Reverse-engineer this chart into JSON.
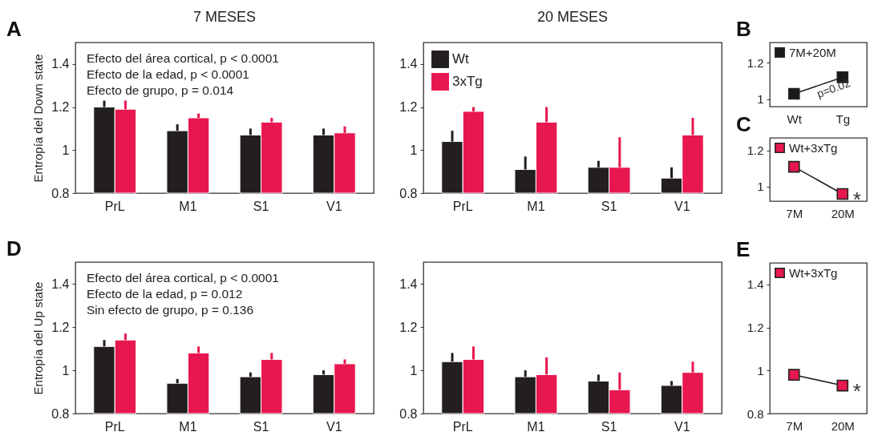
{
  "chart_data": [
    {
      "type": "bar",
      "title": "7 MESES",
      "ylabel": "Entropía del Down state",
      "categories": [
        "PrL",
        "M1",
        "S1",
        "V1"
      ],
      "ylim": [
        0.8,
        1.5
      ],
      "yticks": [
        0.8,
        1,
        1.2,
        1.4
      ],
      "grid": false,
      "legend": false,
      "series": [
        {
          "color": "#231f20",
          "values": [
            1.2,
            1.09,
            1.07,
            1.07
          ],
          "errors": [
            [
              1.2,
              1.23
            ],
            [
              1.09,
              1.12
            ],
            [
              1.07,
              1.1
            ],
            [
              1.07,
              1.1
            ]
          ]
        },
        {
          "color": "#e8174f",
          "values": [
            1.19,
            1.15,
            1.13,
            1.08
          ],
          "errors": [
            [
              1.19,
              1.23
            ],
            [
              1.15,
              1.17
            ],
            [
              1.13,
              1.15
            ],
            [
              1.08,
              1.11
            ]
          ]
        }
      ],
      "annotations": [
        "A",
        "Efecto del área cortical, p < 0.0001",
        "Efecto de la edad, p < 0.0001",
        "Efecto de grupo, p = 0.014"
      ]
    },
    {
      "type": "bar",
      "title": "20 MESES",
      "categories": [
        "PrL",
        "M1",
        "S1",
        "V1"
      ],
      "ylim": [
        0.8,
        1.5
      ],
      "yticks": [
        0.8,
        1,
        1.2,
        1.4
      ],
      "grid": false,
      "legend": "top left",
      "series": [
        {
          "name": "Wt",
          "color": "#231f20",
          "values": [
            1.04,
            0.91,
            0.92,
            0.87
          ],
          "errors": [
            [
              1.04,
              1.09
            ],
            [
              0.91,
              0.97
            ],
            [
              0.92,
              0.95
            ],
            [
              0.87,
              0.92
            ]
          ]
        },
        {
          "name": "3xTg",
          "color": "#e8174f",
          "values": [
            1.18,
            1.13,
            0.92,
            1.07
          ],
          "errors": [
            [
              1.18,
              1.2
            ],
            [
              1.13,
              1.2
            ],
            [
              0.92,
              1.06
            ],
            [
              1.07,
              1.15
            ]
          ]
        }
      ]
    },
    {
      "type": "line",
      "categories": [
        "Wt",
        "Tg"
      ],
      "ylim": [
        0.96,
        1.31
      ],
      "yticks": [
        1,
        1.2
      ],
      "grid": false,
      "legend": "top left",
      "marker": "square",
      "series": [
        {
          "name": "7M+20M",
          "color": "#1a1a1a",
          "values": [
            1.03,
            1.12
          ]
        }
      ],
      "annotations": [
        "B",
        "p=0.02"
      ]
    },
    {
      "type": "line",
      "categories": [
        "7M",
        "20M"
      ],
      "ylim": [
        0.92,
        1.27
      ],
      "yticks": [
        1,
        1.2
      ],
      "grid": false,
      "legend": "top left",
      "marker": "square",
      "series": [
        {
          "name": "Wt+3xTg",
          "color": "#e8174f",
          "values": [
            1.11,
            0.96
          ]
        }
      ],
      "annotations": [
        "C",
        {
          "text": "*",
          "x": "20M",
          "y": 0.96
        }
      ]
    },
    {
      "type": "bar",
      "ylabel": "Entropía del Up state",
      "categories": [
        "PrL",
        "M1",
        "S1",
        "V1"
      ],
      "ylim": [
        0.8,
        1.5
      ],
      "yticks": [
        0.8,
        1,
        1.2,
        1.4
      ],
      "grid": false,
      "legend": false,
      "series": [
        {
          "color": "#231f20",
          "values": [
            1.11,
            0.94,
            0.97,
            0.98
          ],
          "errors": [
            [
              1.11,
              1.14
            ],
            [
              0.94,
              0.96
            ],
            [
              0.97,
              0.99
            ],
            [
              0.98,
              1.0
            ]
          ]
        },
        {
          "color": "#e8174f",
          "values": [
            1.14,
            1.08,
            1.05,
            1.03
          ],
          "errors": [
            [
              1.14,
              1.17
            ],
            [
              1.08,
              1.11
            ],
            [
              1.05,
              1.08
            ],
            [
              1.03,
              1.05
            ]
          ]
        }
      ],
      "annotations": [
        "D",
        "Efecto del área cortical, p < 0.0001",
        "Efecto de la edad, p = 0.012",
        "Sin efecto de grupo, p = 0.136"
      ]
    },
    {
      "type": "bar",
      "categories": [
        "PrL",
        "M1",
        "S1",
        "V1"
      ],
      "ylim": [
        0.8,
        1.5
      ],
      "yticks": [
        0.8,
        1,
        1.2,
        1.4
      ],
      "grid": false,
      "legend": false,
      "series": [
        {
          "color": "#231f20",
          "values": [
            1.04,
            0.97,
            0.95,
            0.93
          ],
          "errors": [
            [
              1.04,
              1.08
            ],
            [
              0.97,
              1.0
            ],
            [
              0.95,
              0.98
            ],
            [
              0.93,
              0.95
            ]
          ]
        },
        {
          "color": "#e8174f",
          "values": [
            1.05,
            0.98,
            0.91,
            0.99
          ],
          "errors": [
            [
              1.05,
              1.11
            ],
            [
              0.98,
              1.06
            ],
            [
              0.91,
              0.99
            ],
            [
              0.99,
              1.04
            ]
          ]
        }
      ]
    },
    {
      "type": "line",
      "categories": [
        "7M",
        "20M"
      ],
      "ylim": [
        0.8,
        1.5
      ],
      "yticks": [
        0.8,
        1,
        1.2,
        1.4
      ],
      "grid": false,
      "legend": "top left",
      "marker": "square",
      "series": [
        {
          "name": "Wt+3xTg",
          "color": "#e8174f",
          "values": [
            0.98,
            0.93
          ]
        }
      ],
      "annotations": [
        "E",
        {
          "text": "*",
          "x": "20M",
          "y": 0.93
        }
      ]
    }
  ]
}
